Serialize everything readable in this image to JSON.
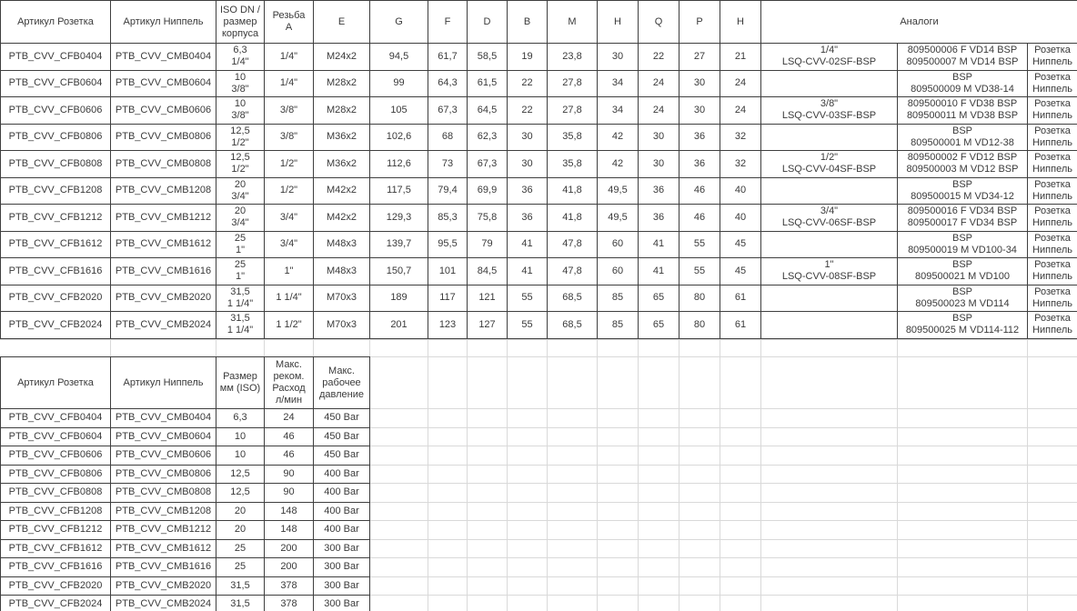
{
  "colors": {
    "grid_line": "#d9d9d9"
  },
  "table1": {
    "headers": [
      "Артикул Розетка",
      "Артикул Ниппель",
      "ISO DN /\nразмер\nкорпуса",
      "Резьба\nА",
      "E",
      "G",
      "F",
      "D",
      "B",
      "M",
      "H",
      "Q",
      "P",
      "H"
    ],
    "analogs_header": "Аналоги",
    "rows": [
      [
        "PTB_CVV_CFB0404",
        "PTB_CVV_CMB0404",
        "6,3\n1/4\"",
        "1/4\"",
        "M24x2",
        "94,5",
        "61,7",
        "58,5",
        "19",
        "23,8",
        "30",
        "22",
        "27",
        "21",
        "1/4\"\nLSQ-CVV-02SF-BSP",
        "809500006 F VD14 BSP\n809500007 M VD14 BSP",
        "Розетка\nНиппель"
      ],
      [
        "PTB_CVV_CFB0604",
        "PTB_CVV_CMB0604",
        "10\n3/8\"",
        "1/4\"",
        "M28x2",
        "99",
        "64,3",
        "61,5",
        "22",
        "27,8",
        "34",
        "24",
        "30",
        "24",
        "",
        "BSP\n809500009 M VD38-14",
        "Розетка\nНиппель"
      ],
      [
        "PTB_CVV_CFB0606",
        "PTB_CVV_CMB0606",
        "10\n3/8\"",
        "3/8\"",
        "M28x2",
        "105",
        "67,3",
        "64,5",
        "22",
        "27,8",
        "34",
        "24",
        "30",
        "24",
        "3/8\"\nLSQ-CVV-03SF-BSP",
        "809500010 F VD38 BSP\n809500011 M VD38 BSP",
        "Розетка\nНиппель"
      ],
      [
        "PTB_CVV_CFB0806",
        "PTB_CVV_CMB0806",
        "12,5\n1/2\"",
        "3/8\"",
        "M36x2",
        "102,6",
        "68",
        "62,3",
        "30",
        "35,8",
        "42",
        "30",
        "36",
        "32",
        "",
        "BSP\n809500001 M VD12-38",
        "Розетка\nНиппель"
      ],
      [
        "PTB_CVV_CFB0808",
        "PTB_CVV_CMB0808",
        "12,5\n1/2\"",
        "1/2\"",
        "M36x2",
        "112,6",
        "73",
        "67,3",
        "30",
        "35,8",
        "42",
        "30",
        "36",
        "32",
        "1/2\"\nLSQ-CVV-04SF-BSP",
        "809500002 F VD12 BSP\n809500003 M VD12 BSP",
        "Розетка\nНиппель"
      ],
      [
        "PTB_CVV_CFB1208",
        "PTB_CVV_CMB1208",
        "20\n3/4\"",
        "1/2\"",
        "M42x2",
        "117,5",
        "79,4",
        "69,9",
        "36",
        "41,8",
        "49,5",
        "36",
        "46",
        "40",
        "",
        "BSP\n809500015 M VD34-12",
        "Розетка\nНиппель"
      ],
      [
        "PTB_CVV_CFB1212",
        "PTB_CVV_CMB1212",
        "20\n3/4\"",
        "3/4\"",
        "M42x2",
        "129,3",
        "85,3",
        "75,8",
        "36",
        "41,8",
        "49,5",
        "36",
        "46",
        "40",
        "3/4\"\nLSQ-CVV-06SF-BSP",
        "809500016 F VD34 BSP\n809500017 F VD34 BSP",
        "Розетка\nНиппель"
      ],
      [
        "PTB_CVV_CFB1612",
        "PTB_CVV_CMB1612",
        "25\n1\"",
        "3/4\"",
        "M48x3",
        "139,7",
        "95,5",
        "79",
        "41",
        "47,8",
        "60",
        "41",
        "55",
        "45",
        "",
        "BSP\n809500019 M VD100-34",
        "Розетка\nНиппель"
      ],
      [
        "PTB_CVV_CFB1616",
        "PTB_CVV_CMB1616",
        "25\n1\"",
        "1\"",
        "M48x3",
        "150,7",
        "101",
        "84,5",
        "41",
        "47,8",
        "60",
        "41",
        "55",
        "45",
        "1\"\nLSQ-CVV-08SF-BSP",
        "BSP\n809500021 M VD100",
        "Розетка\nНиппель"
      ],
      [
        "PTB_CVV_CFB2020",
        "PTB_CVV_CMB2020",
        "31,5\n1 1/4\"",
        "1 1/4\"",
        "M70x3",
        "189",
        "117",
        "121",
        "55",
        "68,5",
        "85",
        "65",
        "80",
        "61",
        "",
        "BSP\n809500023 M VD114",
        "Розетка\nНиппель"
      ],
      [
        "PTB_CVV_CFB2024",
        "PTB_CVV_CMB2024",
        "31,5\n1 1/4\"",
        "1 1/2\"",
        "M70x3",
        "201",
        "123",
        "127",
        "55",
        "68,5",
        "85",
        "65",
        "80",
        "61",
        "",
        "BSP\n809500025 M VD114-112",
        "Розетка\nНиппель"
      ]
    ]
  },
  "table2": {
    "headers": [
      "Артикул Розетка",
      "Артикул Ниппель",
      "Размер\nмм (ISO)",
      "Макс.\nреком.\nРасход\nл/мин",
      "Макс.\nрабочее\nдавление"
    ],
    "rows": [
      [
        "PTB_CVV_CFB0404",
        "PTB_CVV_CMB0404",
        "6,3",
        "24",
        "450 Bar"
      ],
      [
        "PTB_CVV_CFB0604",
        "PTB_CVV_CMB0604",
        "10",
        "46",
        "450 Bar"
      ],
      [
        "PTB_CVV_CFB0606",
        "PTB_CVV_CMB0606",
        "10",
        "46",
        "450 Bar"
      ],
      [
        "PTB_CVV_CFB0806",
        "PTB_CVV_CMB0806",
        "12,5",
        "90",
        "400 Bar"
      ],
      [
        "PTB_CVV_CFB0808",
        "PTB_CVV_CMB0808",
        "12,5",
        "90",
        "400 Bar"
      ],
      [
        "PTB_CVV_CFB1208",
        "PTB_CVV_CMB1208",
        "20",
        "148",
        "400 Bar"
      ],
      [
        "PTB_CVV_CFB1212",
        "PTB_CVV_CMB1212",
        "20",
        "148",
        "400 Bar"
      ],
      [
        "PTB_CVV_CFB1612",
        "PTB_CVV_CMB1612",
        "25",
        "200",
        "300 Bar"
      ],
      [
        "PTB_CVV_CFB1616",
        "PTB_CVV_CMB1616",
        "25",
        "200",
        "300 Bar"
      ],
      [
        "PTB_CVV_CFB2020",
        "PTB_CVV_CMB2020",
        "31,5",
        "378",
        "300 Bar"
      ],
      [
        "PTB_CVV_CFB2024",
        "PTB_CVV_CMB2024",
        "31,5",
        "378",
        "300 Bar"
      ]
    ]
  }
}
